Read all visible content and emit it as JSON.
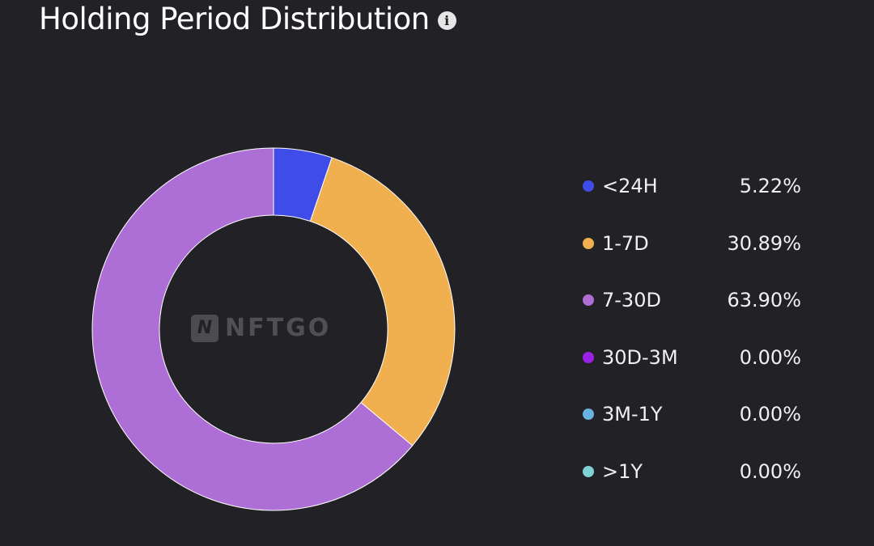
{
  "header": {
    "title": "Holding Period Distribution",
    "info_icon": "info-icon"
  },
  "watermark": {
    "logo_glyph": "N",
    "text": "NFTGO"
  },
  "chart_data": {
    "type": "pie",
    "variant": "donut",
    "title": "Holding Period Distribution",
    "legend_position": "right",
    "slices": [
      {
        "label": "<24H",
        "value": 5.22,
        "value_text": "5.22%",
        "color": "#3f4ce8"
      },
      {
        "label": "1-7D",
        "value": 30.89,
        "value_text": "30.89%",
        "color": "#f0b050"
      },
      {
        "label": "7-30D",
        "value": 63.9,
        "value_text": "63.90%",
        "color": "#ad6fd6"
      },
      {
        "label": "30D-3M",
        "value": 0.0,
        "value_text": "0.00%",
        "color": "#9b20e8"
      },
      {
        "label": "3M-1Y",
        "value": 0.0,
        "value_text": "0.00%",
        "color": "#6ab2e2"
      },
      {
        "label": ">1Y",
        "value": 0.0,
        "value_text": "0.00%",
        "color": "#7fd3d6"
      }
    ]
  }
}
